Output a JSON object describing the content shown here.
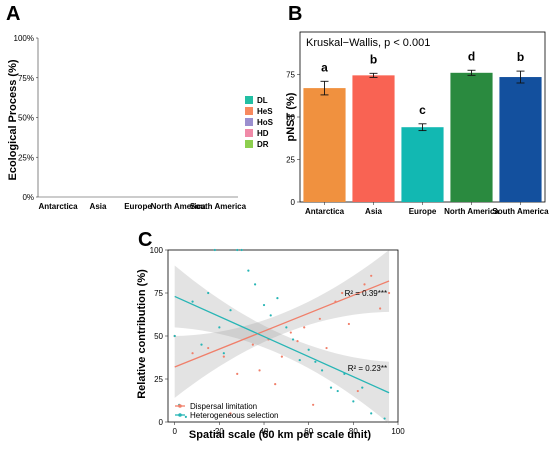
{
  "panels": {
    "a": "A",
    "b": "B",
    "c": "C"
  },
  "chart_data": [
    {
      "id": "A",
      "type": "bar",
      "stacked": true,
      "ylabel": "Ecological Process (%)",
      "ylim": [
        0,
        100
      ],
      "yticks": [
        "0%",
        "25%",
        "50%",
        "75%",
        "100%"
      ],
      "categories": [
        "Antarctica",
        "Asia",
        "Europe",
        "North America",
        "South America"
      ],
      "series": [
        {
          "name": "DR",
          "color": "#8dcf4f",
          "values": [
            0,
            0,
            0,
            0,
            0
          ]
        },
        {
          "name": "HD",
          "color": "#f08aa8",
          "values": [
            0,
            0,
            0,
            0,
            0
          ]
        },
        {
          "name": "HoS",
          "color": "#9b8fcf",
          "values": [
            0,
            0,
            0,
            0,
            0
          ]
        },
        {
          "name": "HeS",
          "color": "#f7895f",
          "values": [
            0,
            0,
            0,
            0,
            0
          ]
        },
        {
          "name": "DL",
          "color": "#22bfa3",
          "values": [
            0,
            0,
            0,
            0,
            0
          ]
        }
      ],
      "legend_order": [
        "DL",
        "HeS",
        "HoS",
        "HD",
        "DR"
      ],
      "legend_position": "right"
    },
    {
      "id": "B",
      "type": "bar",
      "ylabel": "pNST (%)",
      "ylim": [
        0,
        100
      ],
      "yticks": [
        "0",
        "25",
        "50",
        "75"
      ],
      "annotation": "Kruskal−Wallis, p < 0.001",
      "categories": [
        "Antarctica",
        "Asia",
        "Europe",
        "North America",
        "South America"
      ],
      "values": [
        67,
        74.5,
        44,
        76,
        73.5
      ],
      "errors": [
        4,
        1.2,
        2,
        1.5,
        3.5
      ],
      "colors": [
        "#f0913f",
        "#f96353",
        "#12b8b2",
        "#2a8a3f",
        "#13509e"
      ],
      "sig_letters": [
        "a",
        "b",
        "c",
        "d",
        "b"
      ]
    },
    {
      "id": "C",
      "type": "scatter",
      "xlabel": "Spatial scale (60 km per scale unit)",
      "ylabel": "Relative contribution (%)",
      "xlim": [
        -3,
        100
      ],
      "ylim": [
        0,
        100
      ],
      "xticks": [
        "0",
        "20",
        "40",
        "60",
        "80",
        "100"
      ],
      "yticks": [
        "0",
        "25",
        "50",
        "75",
        "100"
      ],
      "legend_position": "bottom-left",
      "series": [
        {
          "name": "Dispersal limitation",
          "color": "#f07f6a",
          "points": [
            [
              0,
              50
            ],
            [
              8,
              40
            ],
            [
              15,
              43
            ],
            [
              22,
              38
            ],
            [
              25,
              5
            ],
            [
              28,
              28
            ],
            [
              35,
              45
            ],
            [
              38,
              30
            ],
            [
              42,
              48
            ],
            [
              45,
              22
            ],
            [
              48,
              38
            ],
            [
              52,
              52
            ],
            [
              55,
              47
            ],
            [
              58,
              55
            ],
            [
              62,
              10
            ],
            [
              65,
              60
            ],
            [
              68,
              43
            ],
            [
              72,
              70
            ],
            [
              75,
              75
            ],
            [
              78,
              57
            ],
            [
              82,
              18
            ],
            [
              85,
              80
            ],
            [
              88,
              85
            ],
            [
              92,
              66
            ],
            [
              96,
              75
            ]
          ],
          "fit": {
            "x": [
              0,
              96
            ],
            "y": [
              32,
              82
            ]
          },
          "r2_label": "R² = 0.39***"
        },
        {
          "name": "Heterogeneous selection",
          "color": "#27b5b5",
          "points": [
            [
              0,
              50
            ],
            [
              2,
              10
            ],
            [
              5,
              3
            ],
            [
              8,
              70
            ],
            [
              12,
              45
            ],
            [
              15,
              75
            ],
            [
              18,
              100
            ],
            [
              20,
              55
            ],
            [
              22,
              40
            ],
            [
              25,
              65
            ],
            [
              28,
              100
            ],
            [
              30,
              100
            ],
            [
              33,
              88
            ],
            [
              36,
              80
            ],
            [
              40,
              68
            ],
            [
              43,
              62
            ],
            [
              46,
              72
            ],
            [
              50,
              55
            ],
            [
              53,
              48
            ],
            [
              56,
              36
            ],
            [
              60,
              42
            ],
            [
              63,
              35
            ],
            [
              66,
              30
            ],
            [
              70,
              20
            ],
            [
              73,
              18
            ],
            [
              76,
              28
            ],
            [
              80,
              12
            ],
            [
              84,
              20
            ],
            [
              88,
              5
            ],
            [
              94,
              2
            ]
          ],
          "fit": {
            "x": [
              0,
              96
            ],
            "y": [
              73,
              17
            ]
          },
          "r2_label": "R² = 0.23**"
        }
      ]
    }
  ]
}
